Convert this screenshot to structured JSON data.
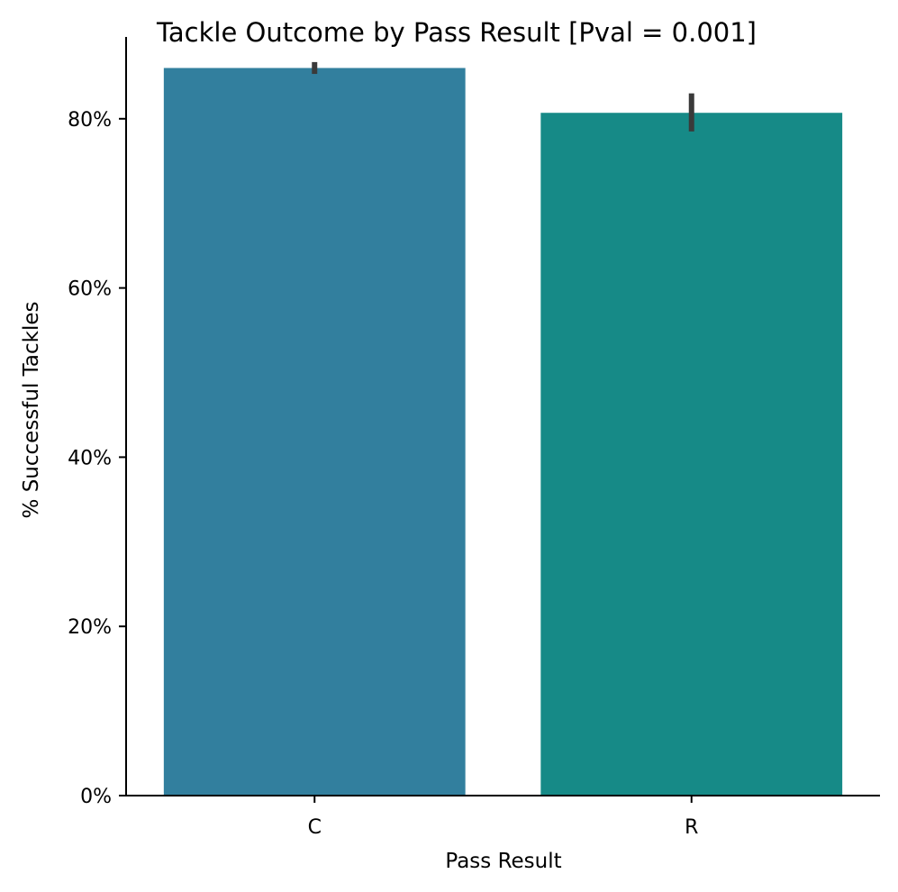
{
  "chart_data": {
    "type": "bar",
    "title": "Tackle Outcome by Pass Result [Pval = 0.001]",
    "xlabel": "Pass Result",
    "ylabel": "% Successful Tackles",
    "categories": [
      "C",
      "R"
    ],
    "values": [
      0.86,
      0.807
    ],
    "error_bars": [
      {
        "low": 0.853,
        "high": 0.867
      },
      {
        "low": 0.785,
        "high": 0.83
      }
    ],
    "ylim": [
      0,
      0.87
    ],
    "yticks": [
      0,
      0.2,
      0.4,
      0.6,
      0.8
    ],
    "ytick_labels": [
      "0%",
      "20%",
      "40%",
      "60%",
      "80%"
    ],
    "colors": [
      "#327f9e",
      "#168a87"
    ],
    "error_color": "#3a3a3a",
    "grid": false,
    "legend": "none"
  }
}
